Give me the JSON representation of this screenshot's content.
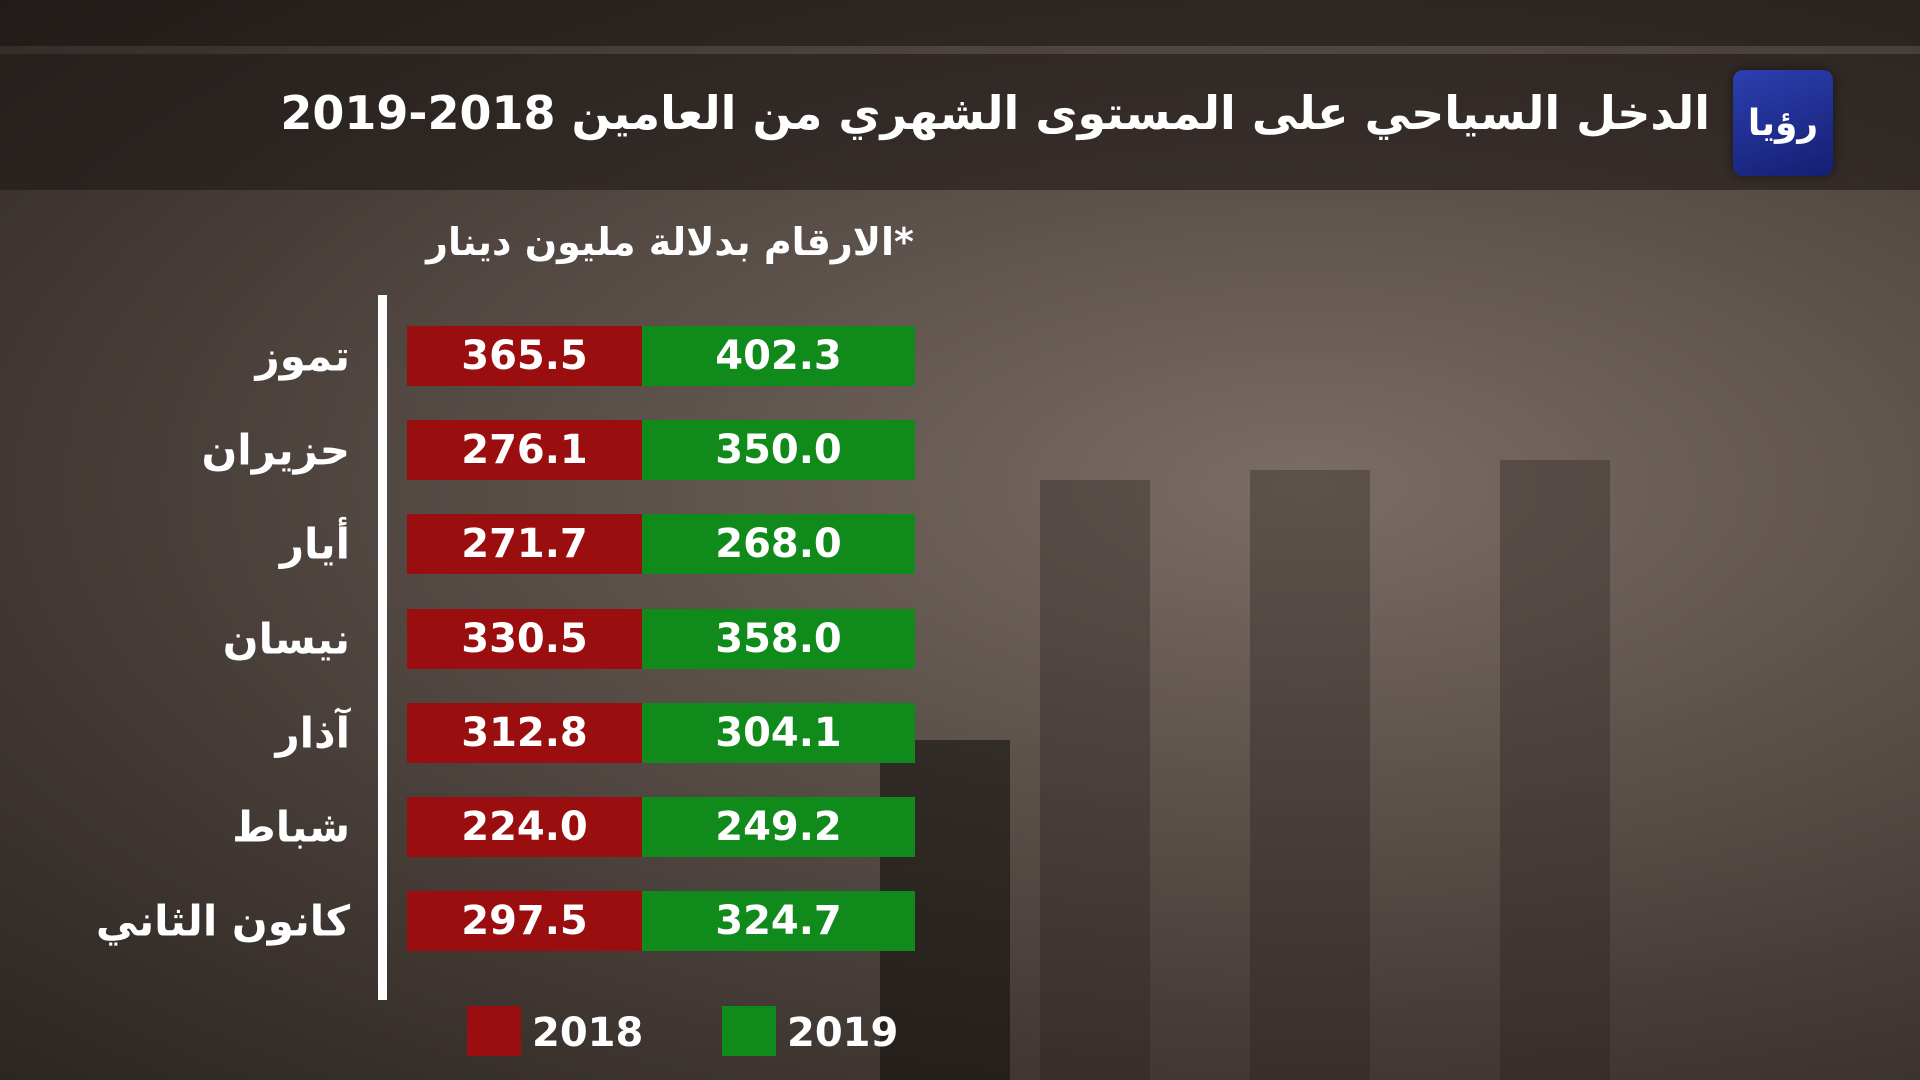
{
  "header": {
    "title": "الدخل السياحي على المستوى الشهري من العامين 2018-2019",
    "logo": "رؤيا"
  },
  "subtitle": "*الارقام بدلالة مليون دينار",
  "table": {
    "columns": [
      {
        "name": "2018",
        "color": "#9b0e10"
      },
      {
        "name": "2019",
        "color": "#108a1a"
      }
    ],
    "rows": [
      {
        "month": "تموز",
        "values": [
          "365.5",
          "402.3"
        ]
      },
      {
        "month": "حزيران",
        "values": [
          "276.1",
          "350.0"
        ]
      },
      {
        "month": "أيار",
        "values": [
          "271.7",
          "268.0"
        ]
      },
      {
        "month": "نيسان",
        "values": [
          "330.5",
          "358.0"
        ]
      },
      {
        "month": "آذار",
        "values": [
          "312.8",
          "304.1"
        ]
      },
      {
        "month": "شباط",
        "values": [
          "224.0",
          "249.2"
        ]
      },
      {
        "month": "كانون الثاني",
        "values": [
          "297.5",
          "324.7"
        ]
      }
    ]
  }
}
